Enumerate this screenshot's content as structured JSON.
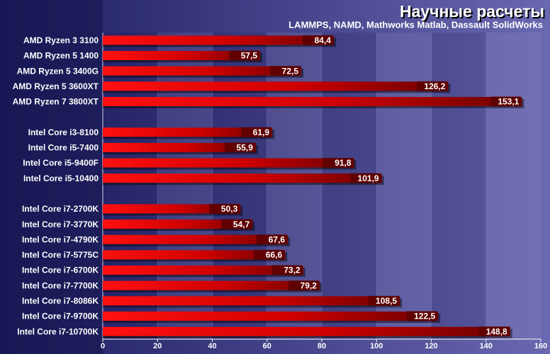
{
  "chart_data": {
    "type": "hbar",
    "title": "Научные расчеты",
    "subtitle": "LAMMPS, NAMD, Mathworks Matlab, Dassault SolidWorks",
    "categories": [
      "AMD Ryzen 3 3100",
      "AMD Ryzen 5 1400",
      "AMD Ryzen 5 3400G",
      "AMD Ryzen 5 3600XT",
      "AMD Ryzen 7 3800XT",
      null,
      "Intel Core i3-8100",
      "Intel Core i5-7400",
      "Intel Core i5-9400F",
      "Intel Core i5-10400",
      null,
      "Intel Core i7-2700K",
      "Intel Core i7-3770K",
      "Intel Core i7-4790K",
      "Intel Core i7-5775C",
      "Intel Core i7-6700K",
      "Intel Core i7-7700K",
      "Intel Core i7-8086K",
      "Intel Core i7-9700K",
      "Intel Core i7-10700K"
    ],
    "values": [
      84.4,
      57.5,
      72.5,
      126.2,
      153.1,
      null,
      61.9,
      55.9,
      91.8,
      101.9,
      null,
      50.3,
      54.7,
      67.6,
      66.6,
      73.2,
      79.2,
      108.5,
      122.5,
      148.8
    ],
    "value_labels": [
      "84,4",
      "57,5",
      "72,5",
      "126,2",
      "153,1",
      null,
      "61,9",
      "55,9",
      "91,8",
      "101,9",
      null,
      "50,3",
      "54,7",
      "67,6",
      "66,6",
      "73,2",
      "79,2",
      "108,5",
      "122,5",
      "148,8"
    ],
    "color": "#ff0000",
    "xlim": [
      0,
      160
    ],
    "xticks": [
      0,
      20,
      40,
      60,
      80,
      100,
      120,
      140,
      160
    ],
    "grid": true
  }
}
